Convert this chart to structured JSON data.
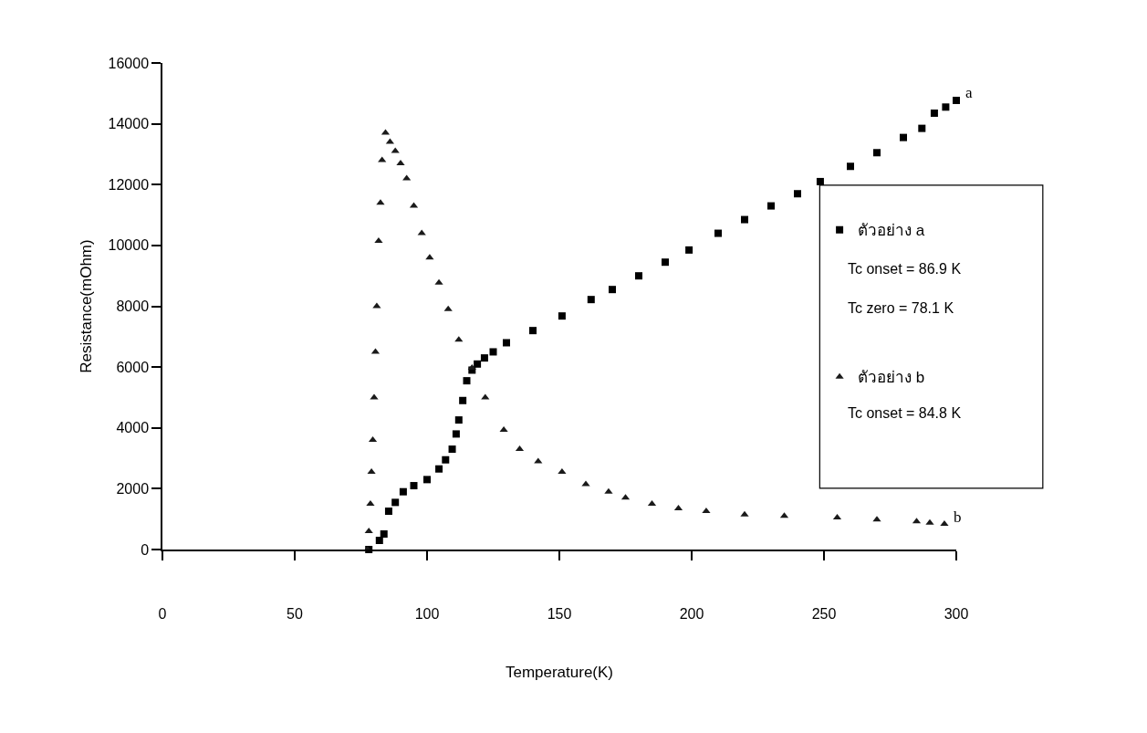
{
  "chart_data": {
    "type": "scatter",
    "xlabel": "Temperature(K)",
    "ylabel": "Resistance(mOhm)",
    "xlim": [
      0,
      300
    ],
    "xticks": [
      0,
      50,
      100,
      150,
      200,
      250,
      300
    ],
    "ylim": [
      0,
      16000
    ],
    "yticks": [
      0,
      2000,
      4000,
      6000,
      8000,
      10000,
      12000,
      14000,
      16000
    ],
    "grid": false,
    "legend": "right",
    "series": [
      {
        "name": "ตัวอย่าง a",
        "color": "#000000",
        "marker": "square",
        "x": [
          78,
          82,
          83.7,
          85.5,
          88,
          91,
          95,
          100,
          104.5,
          107,
          109.5,
          111,
          112,
          113.5,
          115,
          117,
          119,
          121.7,
          125,
          130,
          140,
          151,
          162,
          170,
          180,
          190,
          199,
          210,
          220,
          230,
          240,
          248.6,
          260,
          270,
          280,
          287,
          291.7,
          296,
          300
        ],
        "values": [
          0,
          300,
          510,
          1260,
          1550,
          1900,
          2100,
          2300,
          2650,
          2950,
          3300,
          3800,
          4260,
          4900,
          5550,
          5900,
          6100,
          6300,
          6500,
          6800,
          7200,
          7680,
          8220,
          8550,
          9000,
          9450,
          9850,
          10400,
          10850,
          11300,
          11700,
          12100,
          12600,
          13050,
          13550,
          13850,
          14350,
          14550,
          14770
        ]
      },
      {
        "name": "ตัวอย่าง b",
        "color": "#1a1a1a",
        "marker": "triangle",
        "x": [
          77.5,
          78,
          78.6,
          79,
          79.5,
          80,
          80.5,
          81,
          81.7,
          82.4,
          83,
          84.3,
          86,
          88,
          90,
          92.3,
          95,
          98,
          101,
          104.5,
          108,
          112,
          117,
          122,
          129,
          135,
          142,
          151,
          160,
          168.6,
          175,
          185,
          195,
          205.5,
          220,
          235,
          255,
          270,
          285,
          290,
          295.5
        ],
        "values": [
          0,
          600,
          1500,
          2550,
          3600,
          5000,
          6500,
          8000,
          10150,
          11400,
          12800,
          13700,
          13400,
          13100,
          12700,
          12200,
          11300,
          10400,
          9600,
          8770,
          7900,
          6900,
          5970,
          5000,
          3930,
          3300,
          2900,
          2550,
          2150,
          1900,
          1700,
          1500,
          1350,
          1260,
          1150,
          1100,
          1050,
          980,
          920,
          880,
          840
        ]
      }
    ],
    "annotations": [
      {
        "text": "a",
        "x": 300,
        "y": 14770
      },
      {
        "text": "b",
        "x": 295.5,
        "y": 840
      },
      "Tc onset = 86.9 K",
      "Tc zero = 78.1 K",
      "Tc onset = 84.8 K"
    ]
  }
}
